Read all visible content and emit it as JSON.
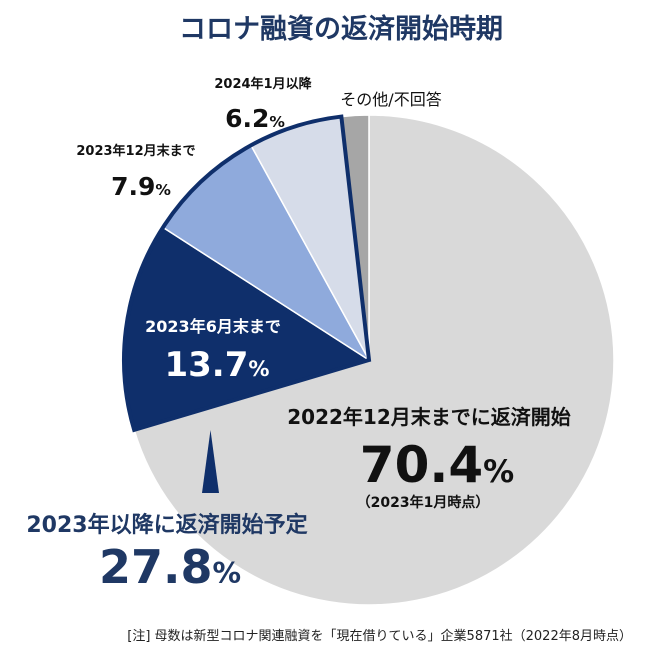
{
  "chart_data": {
    "type": "pie",
    "title": "コロナ融資の返済開始時期",
    "start": "12 o'clock",
    "direction": "clockwise",
    "slices": [
      {
        "label": "2022年12月末までに返済開始",
        "value": 70.4,
        "value_text": "70.4",
        "note": "（2023年1月時点）",
        "color": "#d9d9d9"
      },
      {
        "label": "2023年6月末まで",
        "value": 13.7,
        "value_text": "13.7",
        "color": "#0f2f6b"
      },
      {
        "label": "2023年12月末まで",
        "value": 7.9,
        "value_text": "7.9",
        "color": "#8faadc"
      },
      {
        "label": "2024年1月以降",
        "value": 6.2,
        "value_text": "6.2",
        "color": "#d6dce9"
      },
      {
        "label": "その他/不回答",
        "value": 1.8,
        "color": "#a6a6a6"
      }
    ],
    "pct_symbol": "%",
    "highlight_group": {
      "label": "2023年以降に返済開始予定",
      "value": 27.8,
      "value_text": "27.8",
      "border_color": "#0f2f6b"
    }
  },
  "footnote": "[注] 母数は新型コロナ関連融資を「現在借りている」企業5871社（2022年8月時点）"
}
